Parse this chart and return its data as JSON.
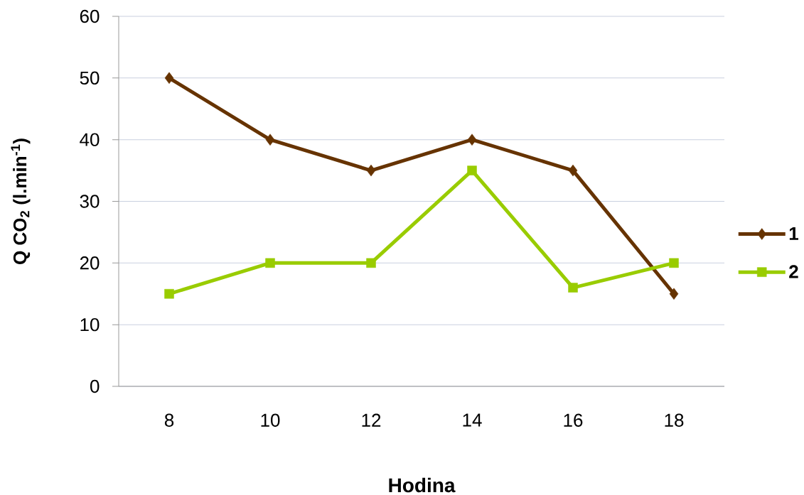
{
  "chart_data": {
    "type": "line",
    "xlabel": "Hodina",
    "ylabel": "Q CO$_{2}$ (l.min$^{-1}$)",
    "categories": [
      "8",
      "10",
      "12",
      "14",
      "16",
      "18"
    ],
    "series": [
      {
        "name": "1",
        "color": "#663300",
        "marker": "diamond",
        "values": [
          50,
          40,
          35,
          40,
          35,
          15
        ]
      },
      {
        "name": "2",
        "color": "#99cc00",
        "marker": "square",
        "values": [
          15,
          20,
          20,
          35,
          16,
          20
        ]
      }
    ],
    "ylim": [
      0,
      60
    ],
    "yticks": [
      0,
      10,
      20,
      30,
      40,
      50,
      60
    ],
    "grid": "y",
    "legend": "right",
    "line_style": "solid"
  }
}
